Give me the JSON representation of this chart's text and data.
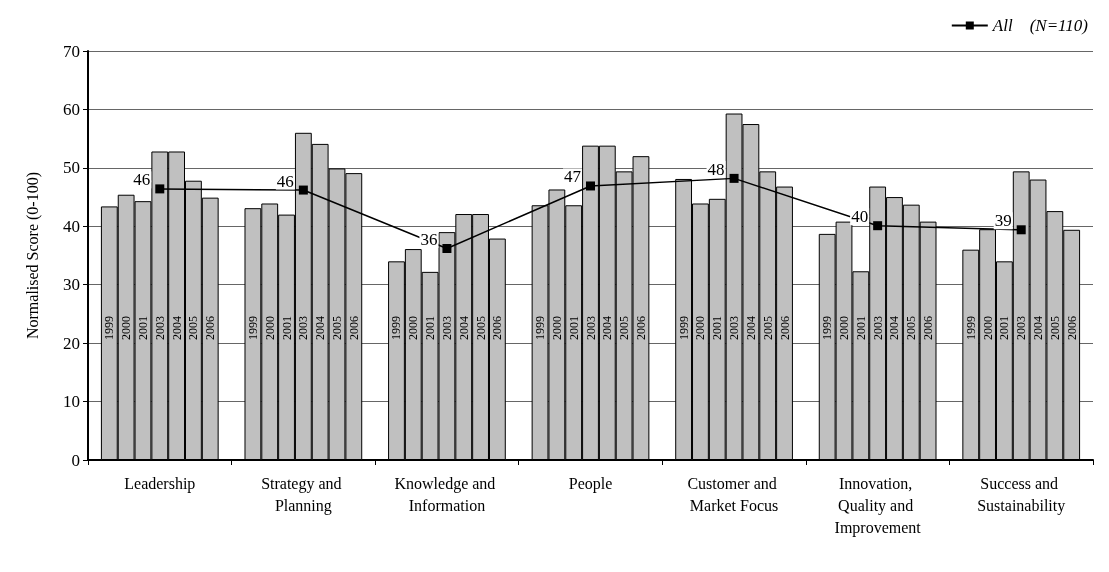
{
  "chart_data": {
    "type": "bar",
    "ylabel": "Normalised Score (0-100)",
    "categories": [
      "Leadership",
      "Strategy and Planning",
      "Knowledge and Information",
      "People",
      "Customer and Market Focus",
      "Innovation, Quality and Improvement",
      "Success and Sustainability"
    ],
    "series": [
      {
        "name": "1999",
        "color": "#c0c0c0",
        "values": [
          43.4,
          43.1,
          34.0,
          43.6,
          48.1,
          38.7,
          36.0
        ]
      },
      {
        "name": "2000",
        "color": "#c0c0c0",
        "values": [
          45.4,
          43.9,
          36.1,
          46.3,
          43.9,
          40.8,
          39.5
        ]
      },
      {
        "name": "2001",
        "color": "#c0c0c0",
        "values": [
          44.3,
          42.0,
          32.2,
          43.6,
          44.7,
          32.3,
          34.0
        ]
      },
      {
        "name": "2003",
        "color": "#c0c0c0",
        "values": [
          52.8,
          56.0,
          39.0,
          53.8,
          59.3,
          46.8,
          49.4
        ]
      },
      {
        "name": "2004",
        "color": "#c0c0c0",
        "values": [
          52.8,
          54.1,
          42.1,
          53.8,
          57.5,
          45.0,
          48.0
        ]
      },
      {
        "name": "2005",
        "color": "#c0c0c0",
        "values": [
          47.8,
          49.9,
          42.1,
          49.4,
          49.4,
          43.7,
          42.6
        ]
      },
      {
        "name": "2006",
        "color": "#c0c0c0",
        "values": [
          44.9,
          49.1,
          37.9,
          52.0,
          46.8,
          40.8,
          39.4
        ]
      },
      {
        "name": "All    (N=110)",
        "type": "line",
        "color": "#000000",
        "marker": "square",
        "line_style": "solid",
        "values": [
          46.4,
          46.2,
          36.2,
          46.9,
          48.2,
          40.1,
          39.4
        ],
        "value_labels": [
          "46",
          "46",
          "36",
          "47",
          "48",
          "40",
          "39"
        ]
      }
    ],
    "ylim": [
      0,
      70
    ],
    "yticks": [
      0,
      10,
      20,
      30,
      40,
      50,
      60,
      70
    ],
    "grid": "y",
    "legend": "top right"
  }
}
